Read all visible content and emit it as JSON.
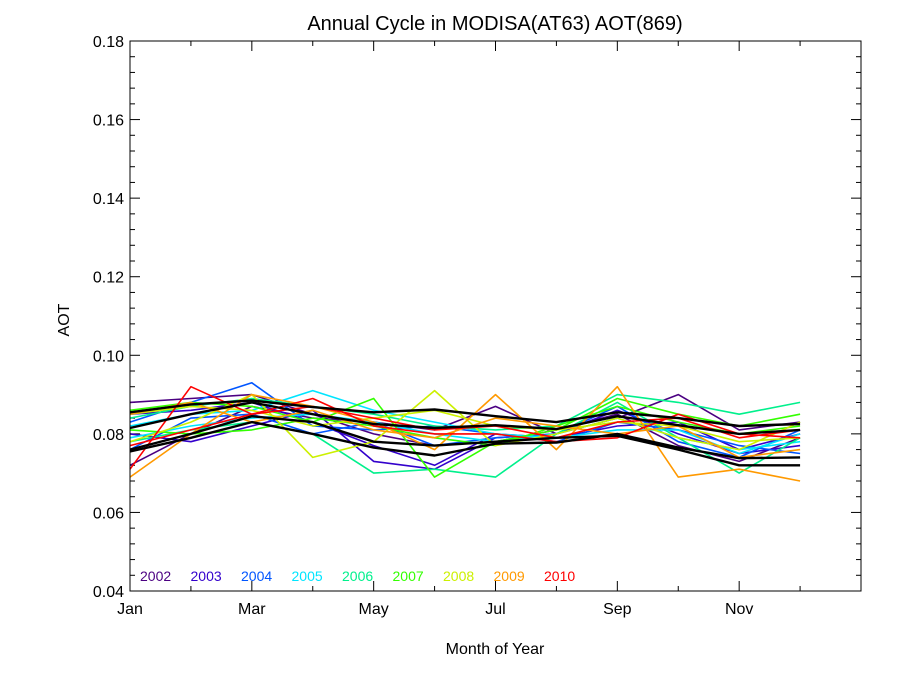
{
  "chart_data": {
    "type": "line",
    "title": "Annual Cycle in MODISA(AT63) AOT(869)",
    "xlabel": "Month of Year",
    "ylabel": "AOT",
    "x": [
      1,
      2,
      3,
      4,
      5,
      6,
      7,
      8,
      9,
      10,
      11,
      12
    ],
    "xlim": [
      1,
      13
    ],
    "ylim": [
      0.04,
      0.18
    ],
    "x_ticks": [
      {
        "value": 1,
        "label": "Jan"
      },
      {
        "value": 3,
        "label": "Mar"
      },
      {
        "value": 5,
        "label": "May"
      },
      {
        "value": 7,
        "label": "Jul"
      },
      {
        "value": 9,
        "label": "Sep"
      },
      {
        "value": 11,
        "label": "Nov"
      }
    ],
    "y_ticks": [
      {
        "value": 0.04,
        "label": "0.04"
      },
      {
        "value": 0.06,
        "label": "0.06"
      },
      {
        "value": 0.08,
        "label": "0.08"
      },
      {
        "value": 0.1,
        "label": "0.10"
      },
      {
        "value": 0.12,
        "label": "0.12"
      },
      {
        "value": 0.14,
        "label": "0.14"
      },
      {
        "value": 0.16,
        "label": "0.16"
      },
      {
        "value": 0.18,
        "label": "0.18"
      }
    ],
    "grid": false,
    "legend_position": "bottom-left",
    "legend": [
      {
        "label": "2002",
        "color": "#4B0082"
      },
      {
        "label": "2003",
        "color": "#3300CC"
      },
      {
        "label": "2004",
        "color": "#0055FF"
      },
      {
        "label": "2005",
        "color": "#00E5FF"
      },
      {
        "label": "2006",
        "color": "#00F08C"
      },
      {
        "label": "2007",
        "color": "#33FF00"
      },
      {
        "label": "2008",
        "color": "#CCF000"
      },
      {
        "label": "2009",
        "color": "#FF9900"
      },
      {
        "label": "2010",
        "color": "#FF0000"
      }
    ],
    "series": [
      {
        "color": "#4B0082",
        "values": [
          0.072,
          0.08,
          0.087,
          0.084,
          0.083,
          0.081,
          0.087,
          0.08,
          0.084,
          0.09,
          0.081,
          0.083
        ]
      },
      {
        "color": "#4B0082",
        "values": [
          0.088,
          0.089,
          0.09,
          0.085,
          0.08,
          0.077,
          0.078,
          0.081,
          0.085,
          0.077,
          0.073,
          0.079
        ]
      },
      {
        "color": "#3300CC",
        "values": [
          0.085,
          0.086,
          0.088,
          0.083,
          0.077,
          0.072,
          0.08,
          0.079,
          0.082,
          0.083,
          0.076,
          0.08
        ]
      },
      {
        "color": "#3300CC",
        "values": [
          0.08,
          0.078,
          0.082,
          0.086,
          0.073,
          0.071,
          0.079,
          0.08,
          0.086,
          0.08,
          0.075,
          0.077
        ]
      },
      {
        "color": "#0055FF",
        "values": [
          0.083,
          0.088,
          0.093,
          0.082,
          0.081,
          0.082,
          0.08,
          0.078,
          0.083,
          0.081,
          0.077,
          0.075
        ]
      },
      {
        "color": "#0055FF",
        "values": [
          0.076,
          0.084,
          0.085,
          0.08,
          0.083,
          0.077,
          0.079,
          0.08,
          0.087,
          0.078,
          0.074,
          0.081
        ]
      },
      {
        "color": "#00E5FF",
        "values": [
          0.082,
          0.085,
          0.086,
          0.091,
          0.086,
          0.083,
          0.08,
          0.079,
          0.081,
          0.081,
          0.075,
          0.08
        ]
      },
      {
        "color": "#00E5FF",
        "values": [
          0.079,
          0.082,
          0.084,
          0.085,
          0.083,
          0.08,
          0.078,
          0.08,
          0.084,
          0.079,
          0.076,
          0.078
        ]
      },
      {
        "color": "#00F08C",
        "values": [
          0.084,
          0.087,
          0.089,
          0.087,
          0.085,
          0.082,
          0.081,
          0.082,
          0.09,
          0.088,
          0.085,
          0.088
        ]
      },
      {
        "color": "#00F08C",
        "values": [
          0.078,
          0.081,
          0.083,
          0.08,
          0.07,
          0.071,
          0.069,
          0.08,
          0.088,
          0.079,
          0.07,
          0.079
        ]
      },
      {
        "color": "#33FF00",
        "values": [
          0.086,
          0.088,
          0.087,
          0.083,
          0.089,
          0.069,
          0.078,
          0.081,
          0.089,
          0.085,
          0.082,
          0.085
        ]
      },
      {
        "color": "#33FF00",
        "values": [
          0.081,
          0.08,
          0.081,
          0.084,
          0.082,
          0.079,
          0.077,
          0.082,
          0.087,
          0.083,
          0.08,
          0.082
        ]
      },
      {
        "color": "#CCF000",
        "values": [
          0.078,
          0.083,
          0.09,
          0.074,
          0.078,
          0.091,
          0.077,
          0.08,
          0.084,
          0.079,
          0.076,
          0.083
        ]
      },
      {
        "color": "#CCF000",
        "values": [
          0.085,
          0.087,
          0.086,
          0.082,
          0.084,
          0.086,
          0.082,
          0.081,
          0.083,
          0.082,
          0.078,
          0.079
        ]
      },
      {
        "color": "#FF9900",
        "values": [
          0.069,
          0.08,
          0.09,
          0.087,
          0.083,
          0.076,
          0.09,
          0.076,
          0.092,
          0.069,
          0.071,
          0.068
        ]
      },
      {
        "color": "#FF9900",
        "values": [
          0.085,
          0.088,
          0.083,
          0.086,
          0.081,
          0.079,
          0.084,
          0.082,
          0.08,
          0.082,
          0.074,
          0.076
        ]
      },
      {
        "color": "#FF0000",
        "values": [
          0.071,
          0.092,
          0.085,
          0.089,
          0.082,
          0.08,
          0.08,
          0.078,
          0.079,
          0.085,
          0.08,
          0.079
        ]
      },
      {
        "color": "#FF0000",
        "values": [
          0.077,
          0.081,
          0.085,
          0.087,
          0.084,
          0.081,
          0.082,
          0.079,
          0.083,
          0.084,
          0.079,
          0.081
        ]
      },
      {
        "color": "#000000",
        "values": [
          0.0855,
          0.0875,
          0.0885,
          0.0868,
          0.0855,
          0.0862,
          0.0845,
          0.083,
          0.0855,
          0.084,
          0.082,
          0.0825
        ]
      },
      {
        "color": "#000000",
        "values": [
          0.0815,
          0.085,
          0.088,
          0.085,
          0.0825,
          0.0815,
          0.0822,
          0.0812,
          0.0845,
          0.0822,
          0.08,
          0.081
        ]
      },
      {
        "color": "#000000",
        "values": [
          0.0755,
          0.079,
          0.083,
          0.08,
          0.0765,
          0.0745,
          0.0775,
          0.0778,
          0.08,
          0.0765,
          0.0738,
          0.074
        ]
      },
      {
        "color": "#000000",
        "values": [
          0.076,
          0.08,
          0.0845,
          0.083,
          0.078,
          0.077,
          0.078,
          0.079,
          0.0795,
          0.076,
          0.072,
          0.072
        ]
      }
    ]
  }
}
